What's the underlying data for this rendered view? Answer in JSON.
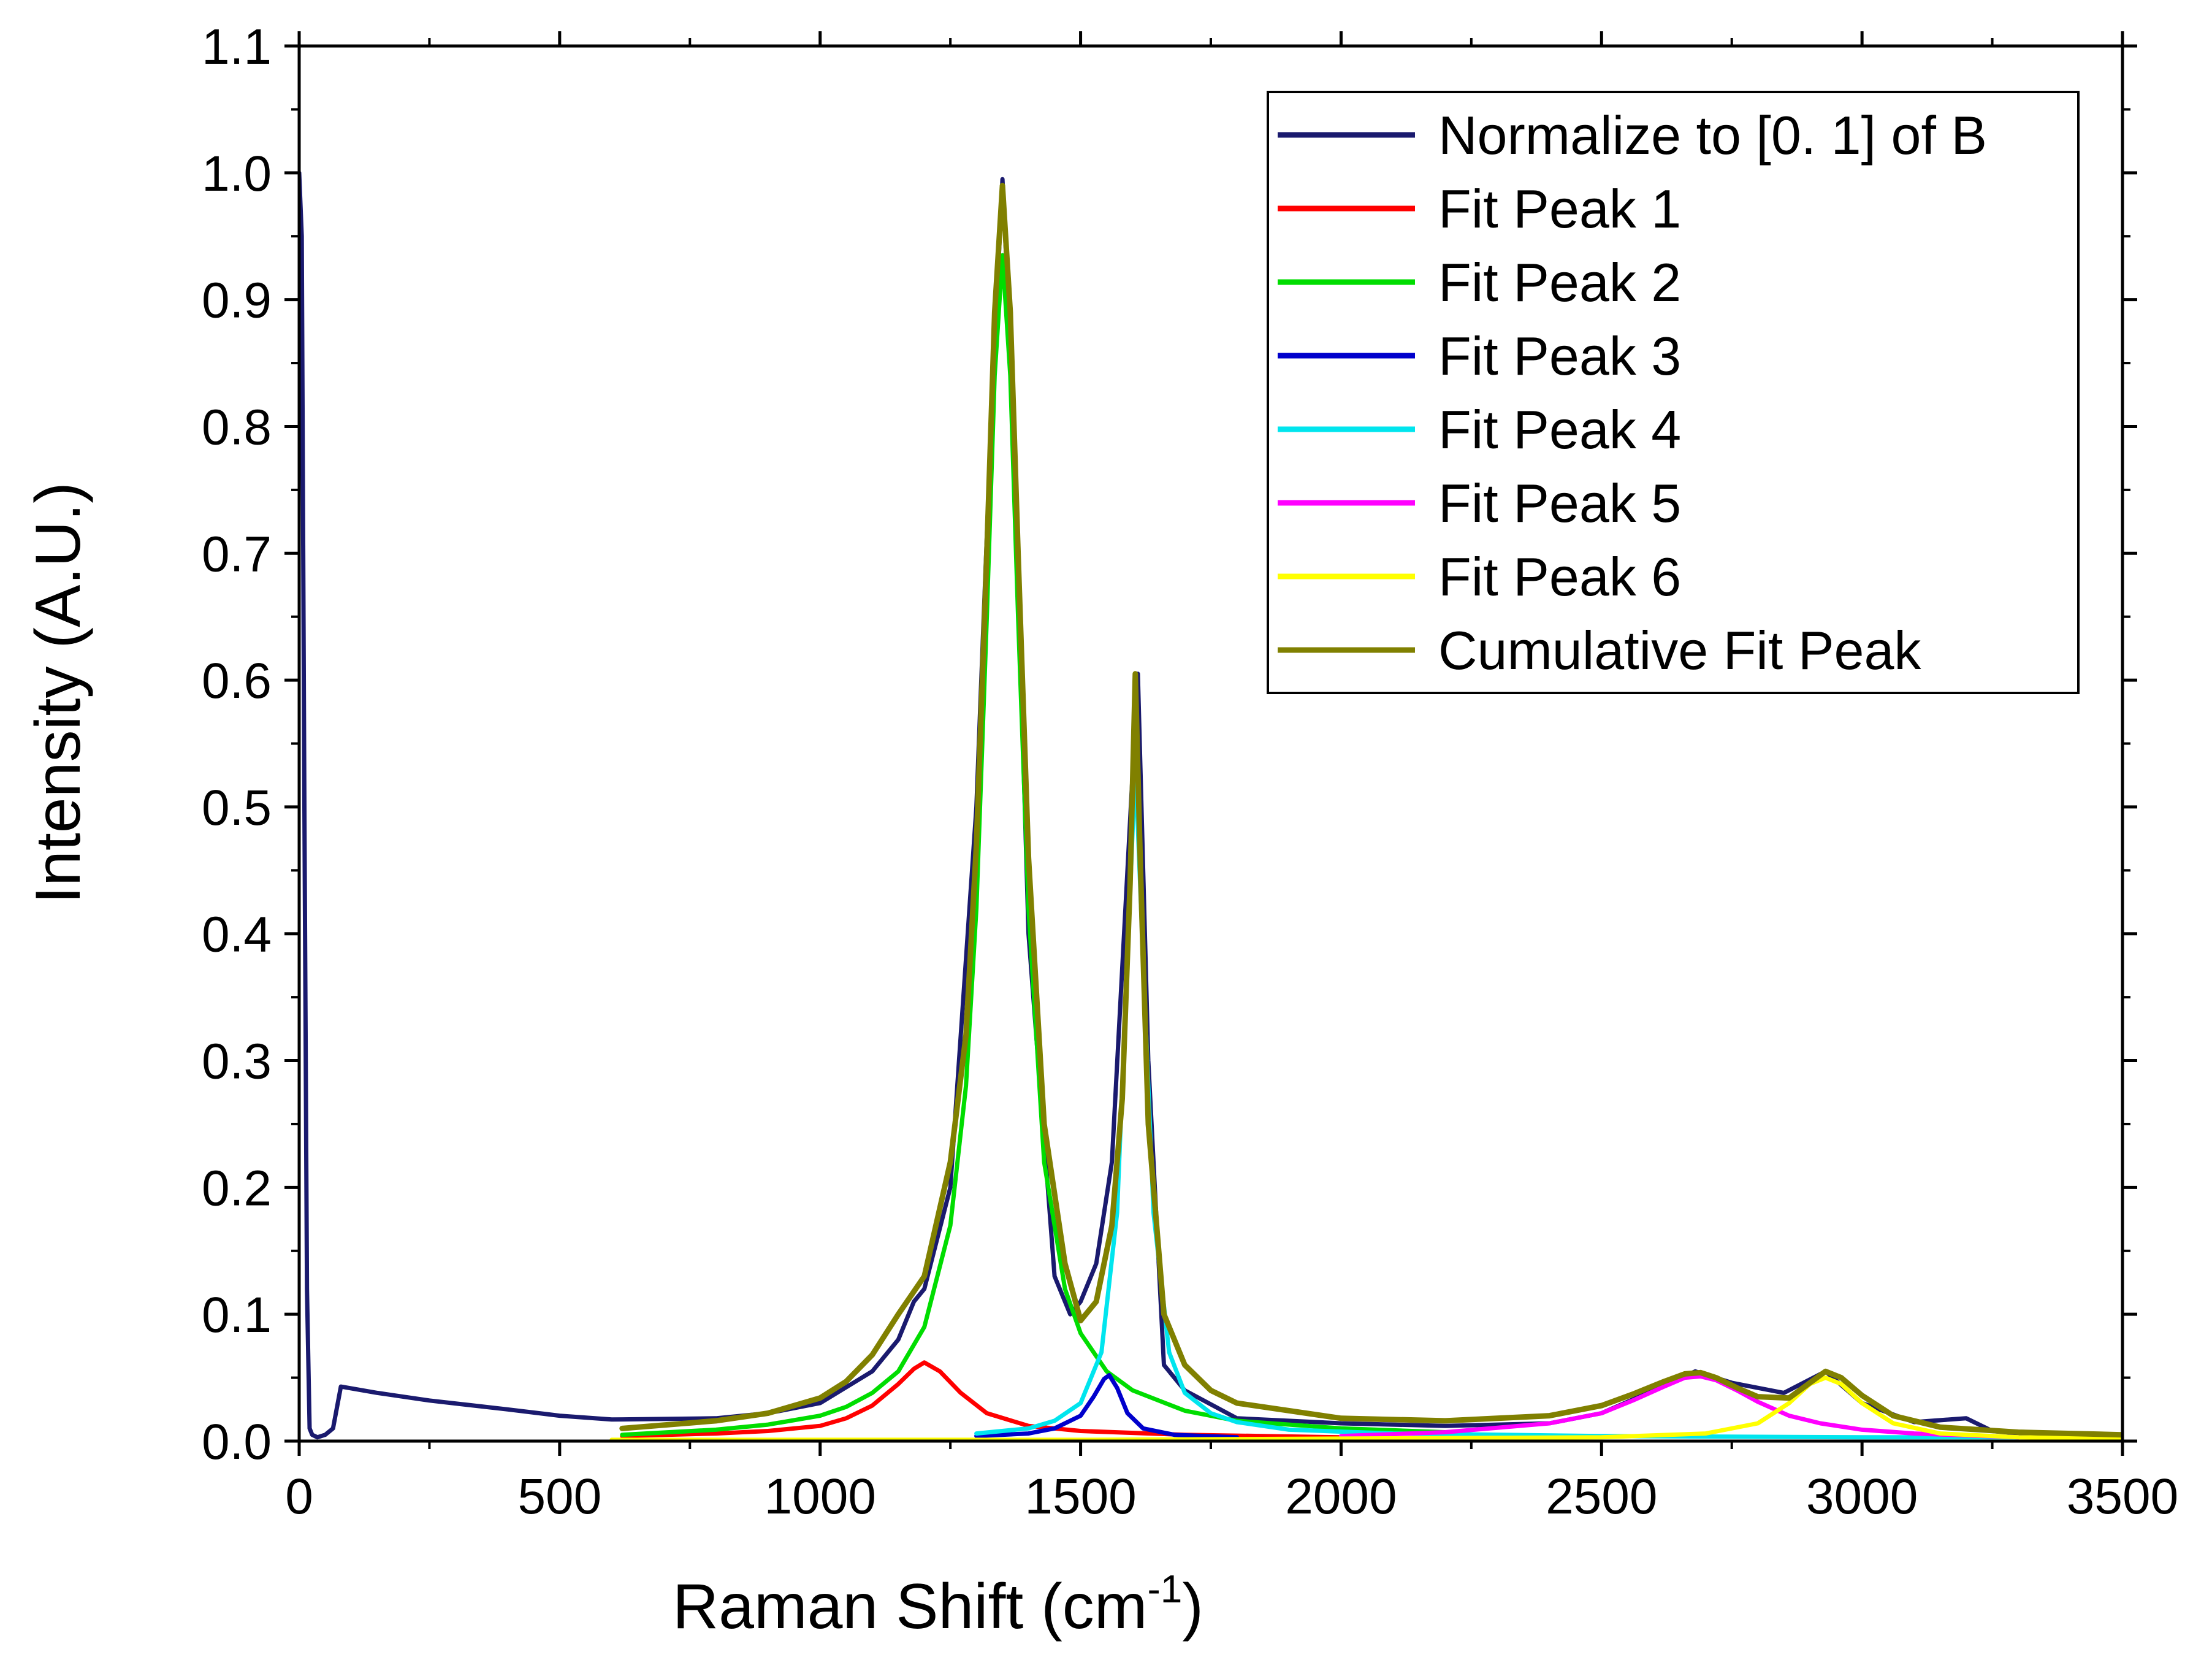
{
  "chart_data": {
    "type": "line",
    "title": "",
    "xlabel": "Raman Shift (cm",
    "xlabel_sup": "-1",
    "xlabel_end": ")",
    "ylabel": "Intensity (A.U.)",
    "xlim": [
      0,
      3500
    ],
    "ylim": [
      0,
      1.1
    ],
    "x_ticks": [
      0,
      500,
      1000,
      1500,
      2000,
      2500,
      3000,
      3500
    ],
    "x_tick_labels": [
      "0",
      "500",
      "1000",
      "1500",
      "2000",
      "2500",
      "3000",
      "3500"
    ],
    "y_ticks": [
      0,
      0.1,
      0.2,
      0.3,
      0.4,
      0.5,
      0.6,
      0.7,
      0.8,
      0.9,
      1.0,
      1.1
    ],
    "y_tick_labels": [
      "0.0",
      "0.1",
      "0.2",
      "0.3",
      "0.4",
      "0.5",
      "0.6",
      "0.7",
      "0.8",
      "0.9",
      "1.0",
      "1.1"
    ],
    "grid": false,
    "legend_position": "top-right",
    "series": [
      {
        "name": "Normalize to [0. 1] of B",
        "color": "#1a1a6e",
        "x": [
          0,
          5,
          10,
          15,
          20,
          25,
          35,
          50,
          65,
          80,
          150,
          250,
          400,
          500,
          600,
          800,
          900,
          1000,
          1100,
          1150,
          1180,
          1200,
          1250,
          1300,
          1330,
          1350,
          1370,
          1400,
          1450,
          1480,
          1500,
          1530,
          1560,
          1590,
          1610,
          1630,
          1660,
          1700,
          1800,
          2000,
          2200,
          2400,
          2500,
          2600,
          2680,
          2750,
          2850,
          2930,
          3000,
          3100,
          3200,
          3250,
          3300,
          3400,
          3500
        ],
        "y": [
          1.0,
          0.95,
          0.5,
          0.12,
          0.01,
          0.005,
          0.003,
          0.005,
          0.01,
          0.043,
          0.038,
          0.032,
          0.025,
          0.02,
          0.017,
          0.018,
          0.022,
          0.03,
          0.055,
          0.08,
          0.11,
          0.12,
          0.2,
          0.5,
          0.82,
          0.995,
          0.82,
          0.4,
          0.13,
          0.1,
          0.11,
          0.14,
          0.22,
          0.45,
          0.605,
          0.3,
          0.06,
          0.04,
          0.018,
          0.014,
          0.012,
          0.014,
          0.022,
          0.04,
          0.055,
          0.046,
          0.038,
          0.055,
          0.03,
          0.015,
          0.018,
          0.008,
          0.006,
          0.005,
          0.005
        ]
      },
      {
        "name": "Fit Peak 1",
        "color": "#ff0000",
        "x": [
          620,
          800,
          900,
          1000,
          1050,
          1100,
          1150,
          1180,
          1200,
          1230,
          1270,
          1320,
          1400,
          1500,
          1700,
          2000
        ],
        "y": [
          0.004,
          0.006,
          0.008,
          0.012,
          0.018,
          0.028,
          0.045,
          0.057,
          0.062,
          0.055,
          0.038,
          0.022,
          0.012,
          0.008,
          0.005,
          0.003
        ]
      },
      {
        "name": "Fit Peak 2",
        "color": "#00dd00",
        "x": [
          620,
          800,
          900,
          1000,
          1050,
          1100,
          1150,
          1200,
          1250,
          1280,
          1300,
          1320,
          1335,
          1350,
          1365,
          1380,
          1400,
          1430,
          1470,
          1500,
          1550,
          1600,
          1700,
          1800,
          2000,
          2200
        ],
        "y": [
          0.005,
          0.009,
          0.013,
          0.02,
          0.027,
          0.038,
          0.055,
          0.09,
          0.17,
          0.28,
          0.42,
          0.65,
          0.84,
          0.935,
          0.84,
          0.65,
          0.42,
          0.22,
          0.12,
          0.085,
          0.055,
          0.04,
          0.024,
          0.016,
          0.01,
          0.007
        ]
      },
      {
        "name": "Fit Peak 3",
        "color": "#0000cc",
        "x": [
          1300,
          1400,
          1450,
          1500,
          1525,
          1545,
          1555,
          1570,
          1590,
          1620,
          1680,
          1800
        ],
        "y": [
          0.004,
          0.006,
          0.01,
          0.02,
          0.035,
          0.049,
          0.052,
          0.042,
          0.022,
          0.01,
          0.005,
          0.003
        ]
      },
      {
        "name": "Fit Peak 4",
        "color": "#00e5ee",
        "x": [
          1300,
          1400,
          1450,
          1500,
          1540,
          1570,
          1590,
          1605,
          1620,
          1640,
          1670,
          1700,
          1750,
          1800,
          1900,
          2100,
          2500,
          3000,
          3300
        ],
        "y": [
          0.006,
          0.01,
          0.016,
          0.03,
          0.07,
          0.18,
          0.38,
          0.535,
          0.38,
          0.18,
          0.07,
          0.038,
          0.022,
          0.015,
          0.009,
          0.006,
          0.004,
          0.003,
          0.003
        ]
      },
      {
        "name": "Fit Peak 5",
        "color": "#ff00ff",
        "x": [
          2000,
          2200,
          2400,
          2500,
          2560,
          2620,
          2660,
          2690,
          2720,
          2760,
          2800,
          2860,
          2920,
          3000,
          3100,
          3300
        ],
        "y": [
          0.004,
          0.007,
          0.014,
          0.022,
          0.032,
          0.043,
          0.05,
          0.051,
          0.048,
          0.04,
          0.031,
          0.02,
          0.014,
          0.009,
          0.006,
          0.003
        ]
      },
      {
        "name": "Fit Peak 6",
        "color": "#ffff00",
        "x": [
          600,
          1000,
          1500,
          2000,
          2500,
          2700,
          2800,
          2860,
          2900,
          2930,
          2960,
          3000,
          3060,
          3150,
          3300,
          3500
        ],
        "y": [
          0.001,
          0.001,
          0.001,
          0.002,
          0.003,
          0.006,
          0.014,
          0.03,
          0.045,
          0.05,
          0.045,
          0.03,
          0.014,
          0.006,
          0.003,
          0.002
        ]
      },
      {
        "name": "Cumulative Fit Peak",
        "color": "#808000",
        "x": [
          620,
          800,
          900,
          1000,
          1050,
          1100,
          1150,
          1180,
          1200,
          1250,
          1280,
          1300,
          1320,
          1335,
          1350,
          1365,
          1380,
          1400,
          1430,
          1470,
          1500,
          1530,
          1560,
          1580,
          1595,
          1605,
          1615,
          1630,
          1660,
          1700,
          1750,
          1800,
          2000,
          2200,
          2400,
          2500,
          2560,
          2620,
          2660,
          2690,
          2720,
          2760,
          2800,
          2860,
          2900,
          2930,
          2960,
          3000,
          3060,
          3150,
          3300,
          3500
        ],
        "y": [
          0.01,
          0.016,
          0.022,
          0.034,
          0.047,
          0.068,
          0.1,
          0.118,
          0.13,
          0.22,
          0.32,
          0.47,
          0.7,
          0.89,
          0.99,
          0.89,
          0.7,
          0.46,
          0.25,
          0.14,
          0.095,
          0.11,
          0.17,
          0.27,
          0.44,
          0.605,
          0.45,
          0.25,
          0.1,
          0.06,
          0.04,
          0.03,
          0.018,
          0.016,
          0.02,
          0.028,
          0.037,
          0.047,
          0.053,
          0.054,
          0.05,
          0.042,
          0.035,
          0.034,
          0.046,
          0.055,
          0.05,
          0.036,
          0.02,
          0.011,
          0.007,
          0.005
        ]
      }
    ]
  }
}
